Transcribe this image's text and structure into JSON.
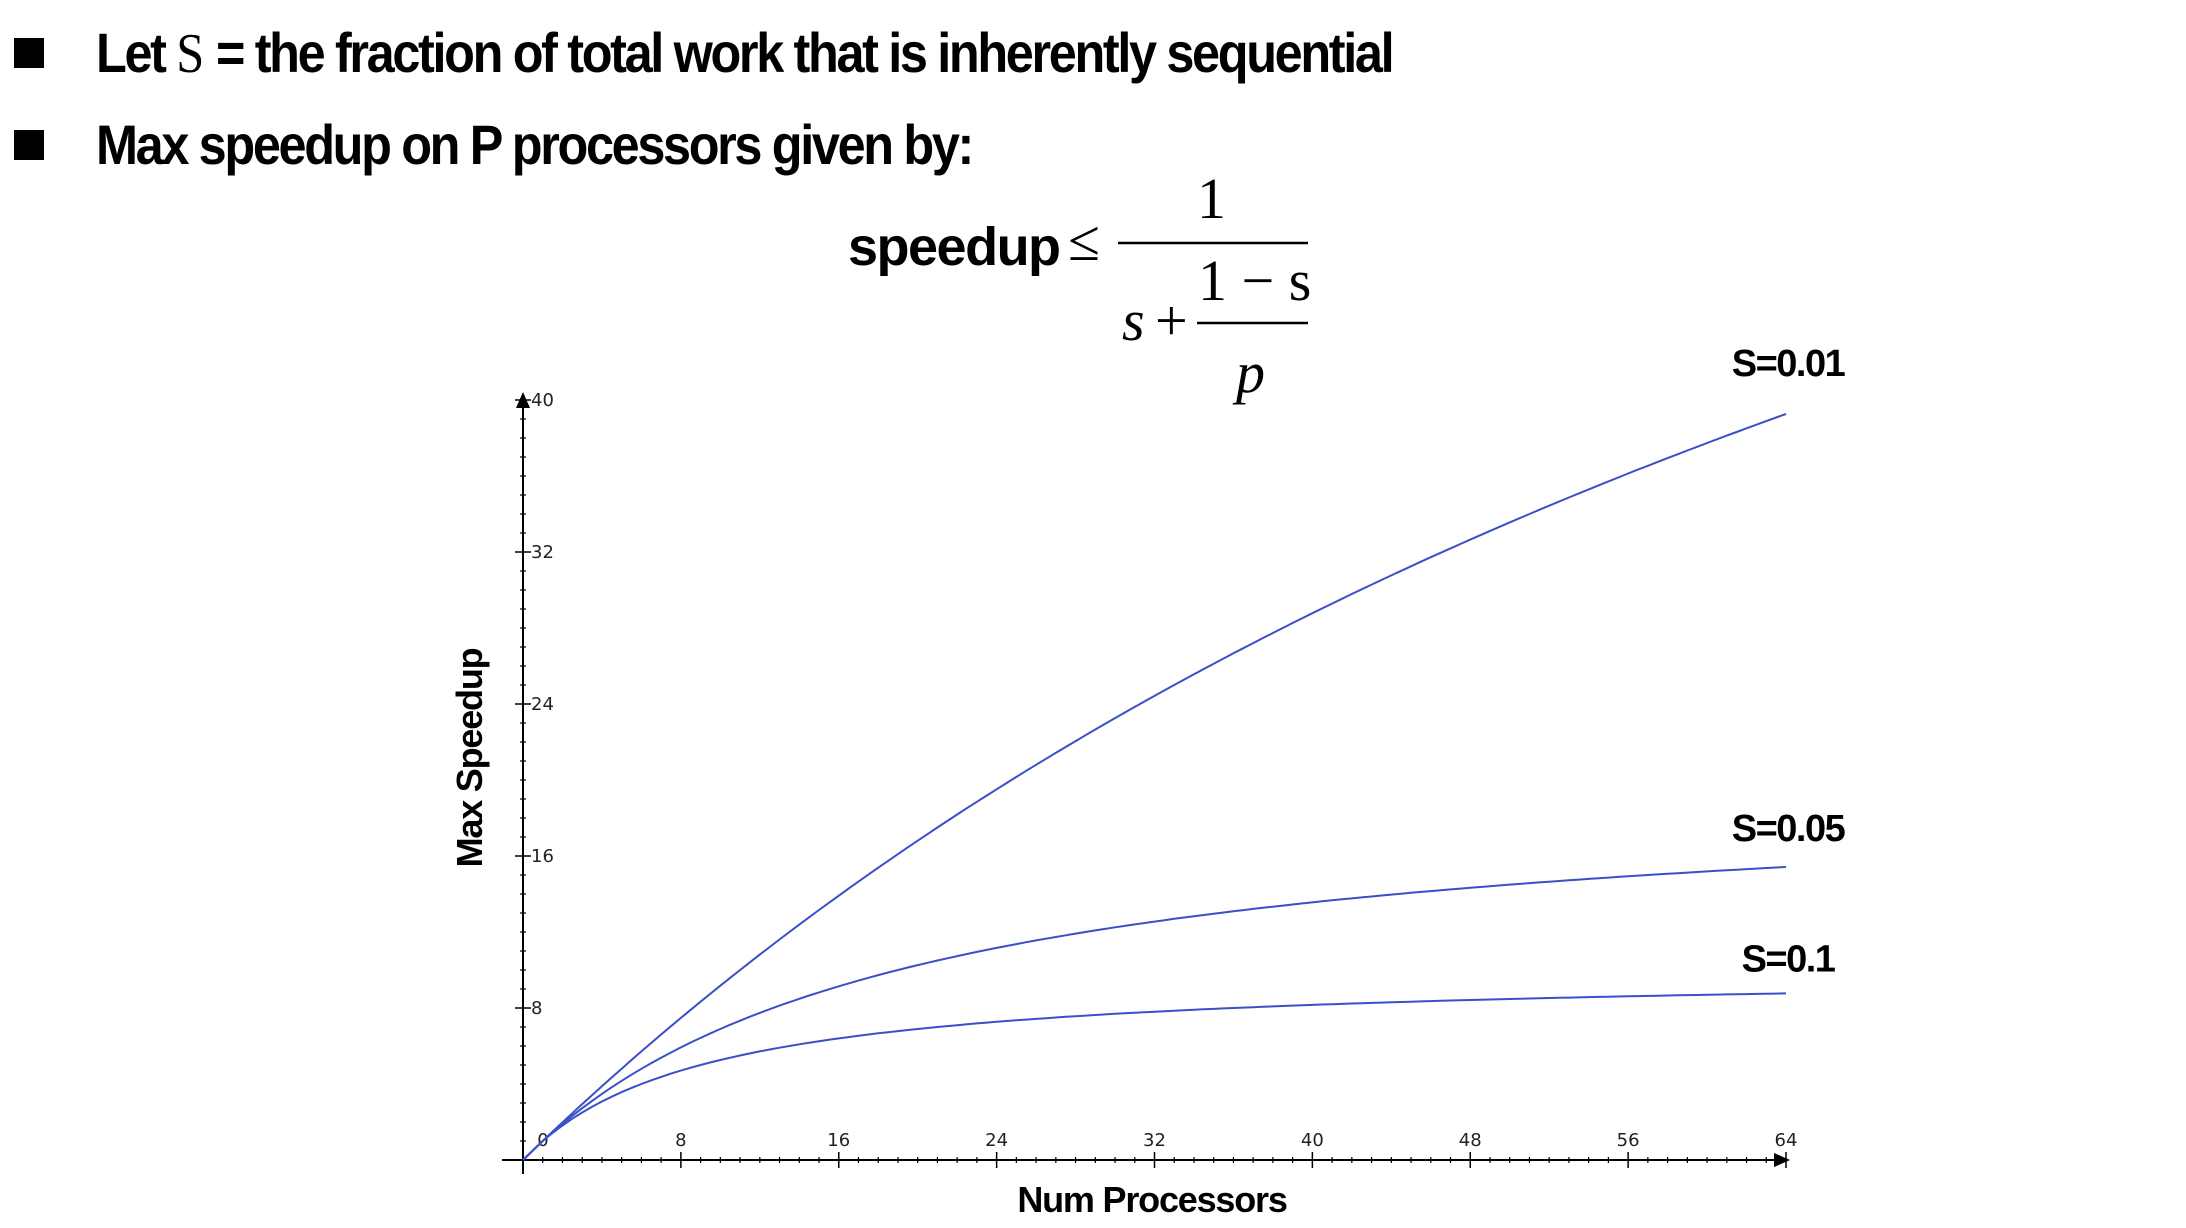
{
  "slide": {
    "bullets": [
      {
        "prefix": "Let ",
        "symbol": "S",
        "suffix": " = the fraction of total work that is inherently sequential"
      },
      {
        "text": "Max speedup on P processors given by:"
      }
    ],
    "formula": {
      "lhs": "speedup",
      "relation": "≤",
      "numerator": "1",
      "denominator_s": "s",
      "plus": "+",
      "inner_numerator": "1 − s",
      "inner_denominator": "p"
    }
  },
  "chart_data": {
    "type": "line",
    "title": "",
    "xlabel": "Num Processors",
    "ylabel": "Max Speedup",
    "xlim": [
      0,
      64
    ],
    "ylim": [
      0,
      40
    ],
    "x_ticks": [
      "0",
      "8",
      "16",
      "24",
      "32",
      "40",
      "48",
      "56",
      "64"
    ],
    "y_ticks": [
      "0",
      "8",
      "16",
      "24",
      "32",
      "40"
    ],
    "line_color": "#3a4fc8",
    "series": [
      {
        "name": "S=0.01",
        "s": 0.01,
        "x": [
          1,
          8,
          16,
          24,
          32,
          40,
          48,
          56,
          64
        ],
        "values": [
          1.0,
          7.5,
          13.9,
          19.5,
          24.4,
          28.8,
          32.7,
          36.2,
          39.3
        ]
      },
      {
        "name": "S=0.05",
        "s": 0.05,
        "x": [
          1,
          8,
          16,
          24,
          32,
          40,
          48,
          56,
          64
        ],
        "values": [
          1.0,
          5.9,
          9.1,
          11.2,
          12.5,
          13.6,
          14.4,
          15.0,
          15.4
        ]
      },
      {
        "name": "S=0.1",
        "s": 0.1,
        "x": [
          1,
          8,
          16,
          24,
          32,
          40,
          48,
          56,
          64
        ],
        "values": [
          1.0,
          4.7,
          6.4,
          7.3,
          7.8,
          8.2,
          8.4,
          8.6,
          8.8
        ]
      }
    ]
  }
}
